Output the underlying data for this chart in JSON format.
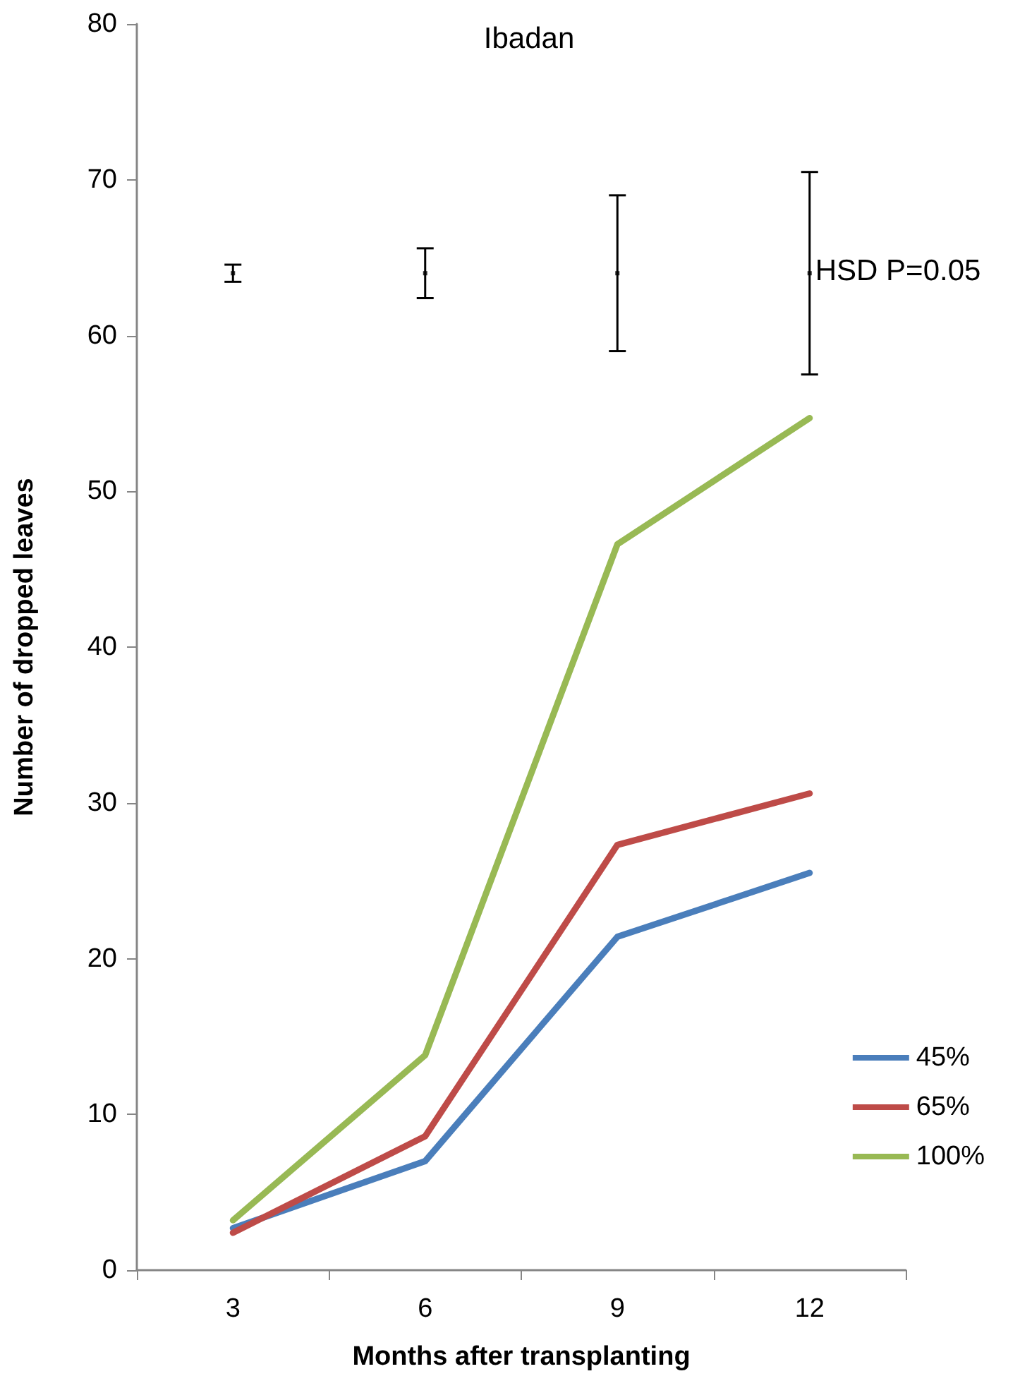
{
  "chart_data": {
    "type": "line",
    "title": "Ibadan",
    "xlabel": "Months after transplanting",
    "ylabel": "Number of dropped leaves",
    "categories": [
      "3",
      "6",
      "9",
      "12"
    ],
    "series": [
      {
        "name": "45%",
        "color": "#4a7ebb",
        "values": [
          2.7,
          7.0,
          21.4,
          25.5
        ]
      },
      {
        "name": "65%",
        "color": "#be4b48",
        "values": [
          2.4,
          8.6,
          27.3,
          30.6
        ]
      },
      {
        "name": "100%",
        "color": "#98b954",
        "values": [
          3.2,
          13.8,
          46.6,
          54.7
        ]
      },
      {
        "type": "scatter",
        "marker": "square",
        "color": "#000000",
        "values": [
          64,
          64,
          64,
          64
        ],
        "errors": [
          0.55,
          1.6,
          5.0,
          6.5
        ]
      }
    ],
    "annotations": [
      {
        "text": "HSD P=0.05",
        "x": "12",
        "y": 64
      }
    ],
    "ylim": [
      0,
      80
    ],
    "yticks": [
      0,
      10,
      20,
      30,
      40,
      50,
      60,
      70,
      80
    ],
    "grid": false,
    "legend": "right",
    "marker": "none",
    "line_style": "solid"
  }
}
